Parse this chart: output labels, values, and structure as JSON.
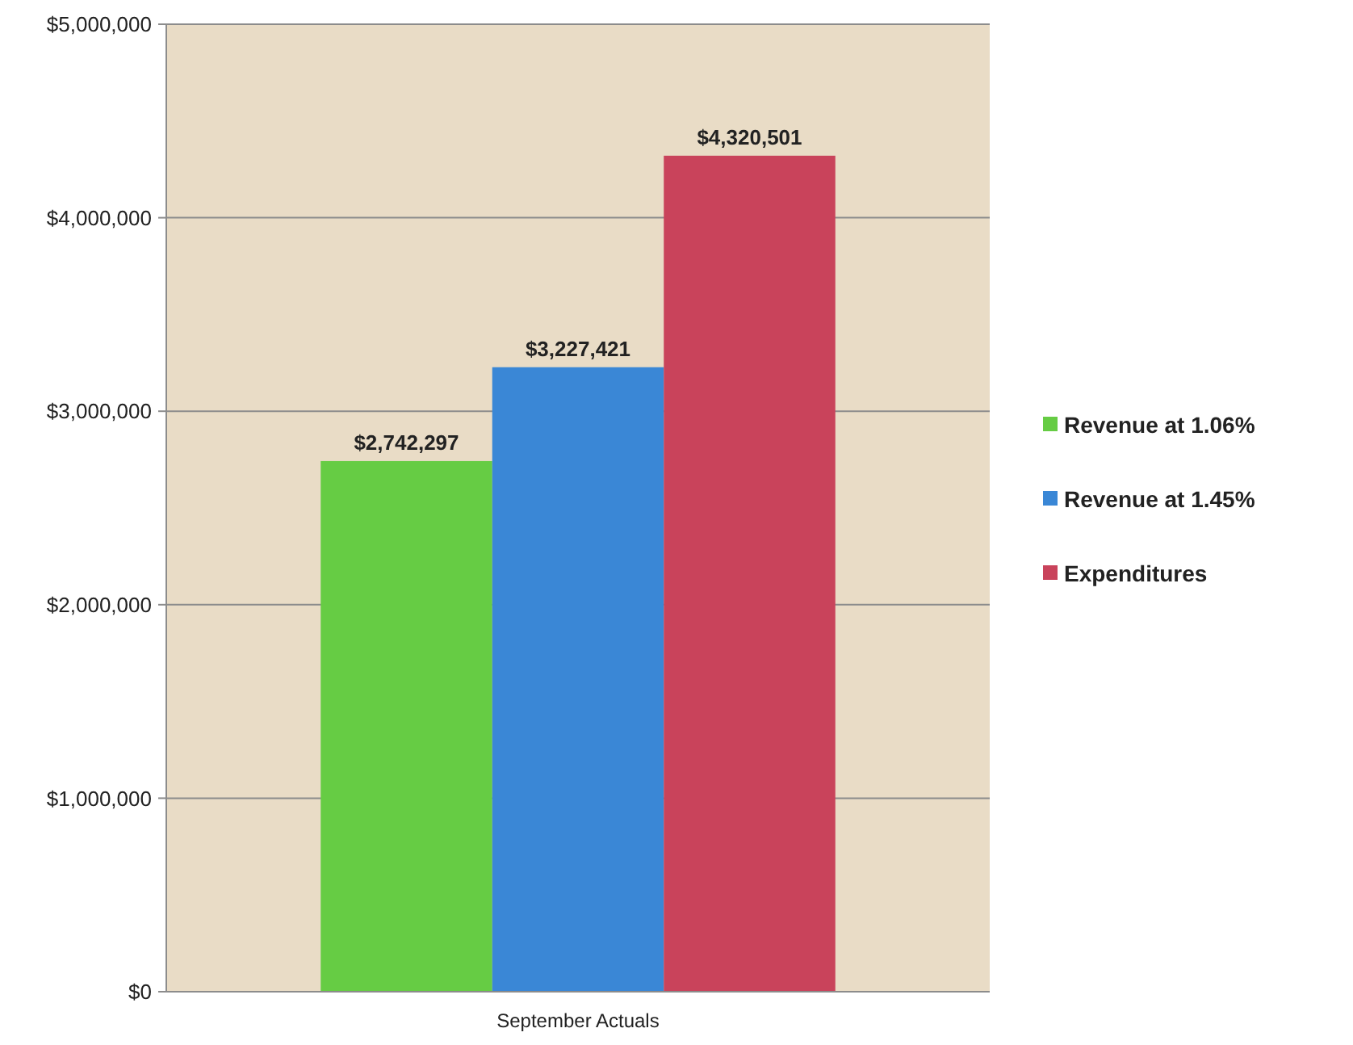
{
  "chart_data": {
    "type": "bar",
    "categories": [
      "September Actuals"
    ],
    "series": [
      {
        "name": "Revenue at 1.06%",
        "color": "#66cc44",
        "values": [
          2742297
        ]
      },
      {
        "name": "Revenue at 1.45%",
        "color": "#3a87d6",
        "values": [
          3227421
        ]
      },
      {
        "name": "Expenditures",
        "color": "#c9435b",
        "values": [
          4320501
        ]
      }
    ],
    "ylim": [
      0,
      5000000
    ],
    "yticks": [
      {
        "value": 0,
        "label": "$0"
      },
      {
        "value": 1000000,
        "label": "$1,000,000"
      },
      {
        "value": 2000000,
        "label": "$2,000,000"
      },
      {
        "value": 3000000,
        "label": "$3,000,000"
      },
      {
        "value": 4000000,
        "label": "$4,000,000"
      },
      {
        "value": 5000000,
        "label": "$5,000,000"
      }
    ],
    "value_labels": [
      "$2,742,297",
      "$3,227,421",
      "$4,320,501"
    ],
    "grid": "y",
    "legend": "right"
  }
}
